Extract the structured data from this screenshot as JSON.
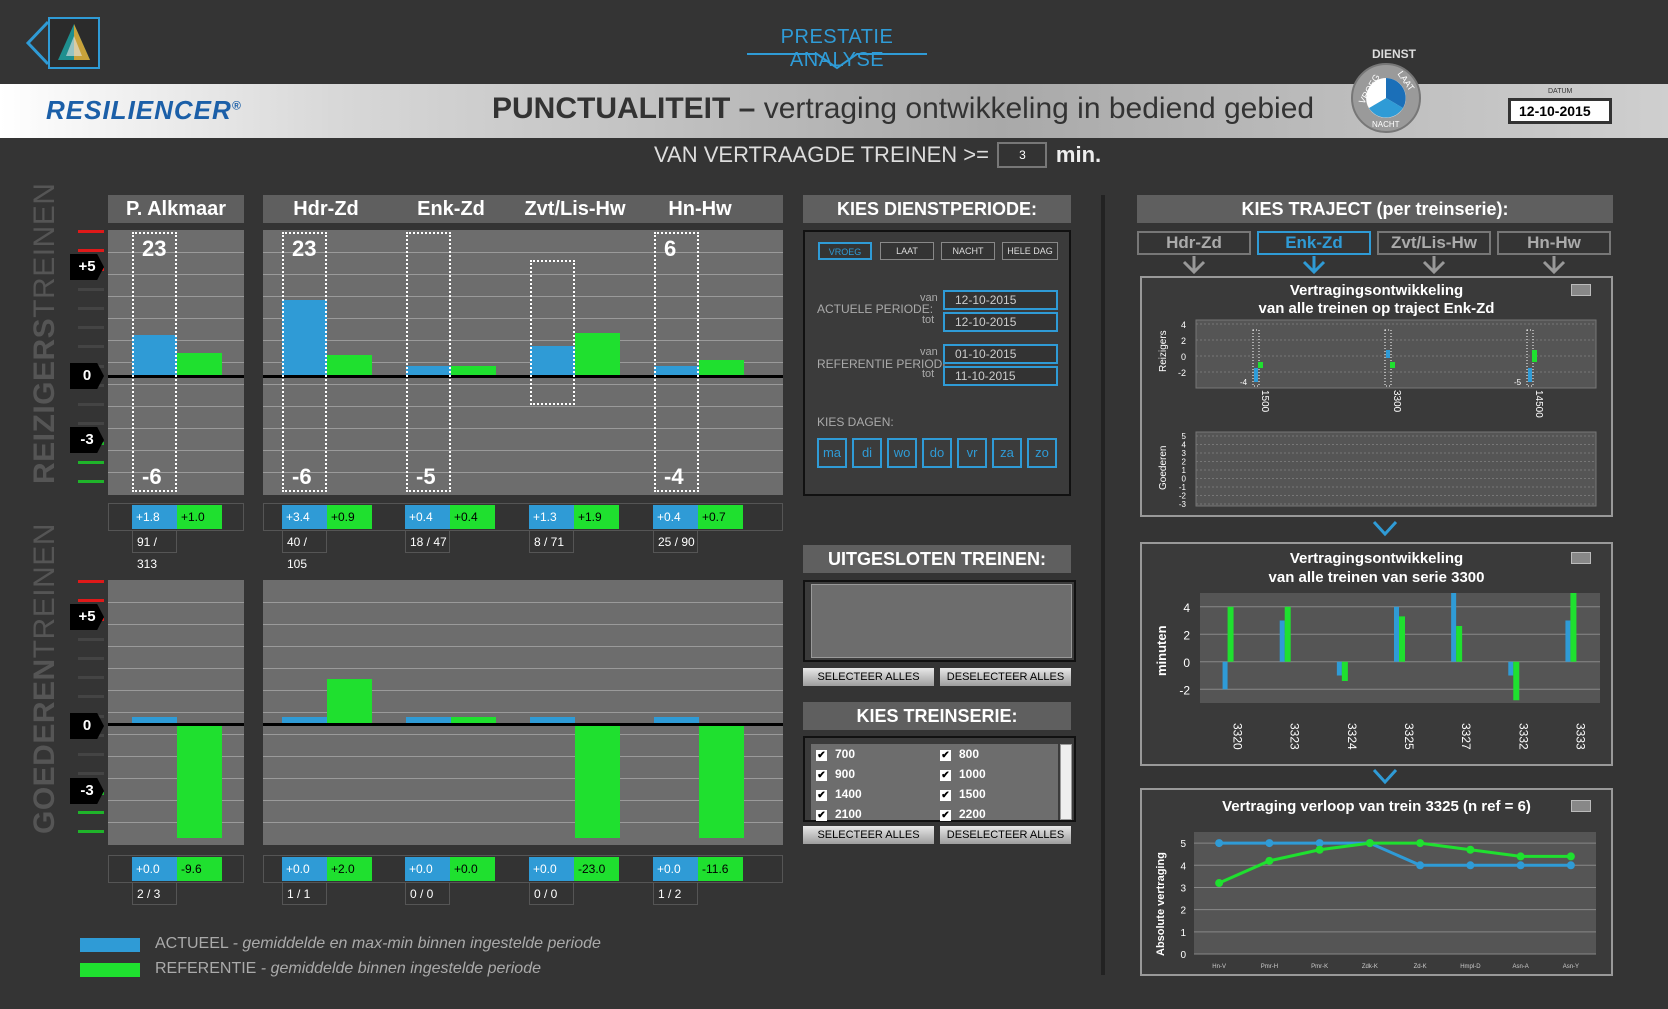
{
  "header": {
    "nav_title": "PRESTATIE ANALYSE",
    "brand": "RESILIENCER",
    "brand_mark": "®",
    "title_bold": "PUNCTUALITEIT –",
    "title_rest": "vertraging ontwikkeling in bediend gebied",
    "dienst_label": "DIENST",
    "dienst_options": [
      "VROEG",
      "LAAT",
      "NACHT"
    ],
    "datum_label": "DATUM",
    "datum_value": "12-10-2015"
  },
  "delay_filter": {
    "label": "VAN VERTRAAGDE TREINEN >=",
    "value": "3",
    "unit": "min."
  },
  "colors": {
    "actueel": "#2f9bd6",
    "referentie": "#1fe02f"
  },
  "section_labels": {
    "reiziger_a": "REIZIGERS",
    "reiziger_b": "TREINEN",
    "goederen_a": "GOEDEREN",
    "goederen_b": "TREINEN"
  },
  "y_badges": {
    "plus": "+5",
    "zero": "0",
    "minus": "-3"
  },
  "columns": [
    {
      "name": "P. Alkmaar",
      "reizigers": {
        "actueel": "+1.8",
        "referentie": "+1.0",
        "count": "91 / 313",
        "max": "23",
        "min": "-6"
      },
      "goederen": {
        "actueel": "+0.0",
        "referentie": "-9.6",
        "count": "2 / 3"
      }
    },
    {
      "name": "Hdr-Zd",
      "reizigers": {
        "actueel": "+3.4",
        "referentie": "+0.9",
        "count": "40 / 105",
        "max": "23",
        "min": "-6"
      },
      "goederen": {
        "actueel": "+0.0",
        "referentie": "+2.0",
        "count": "1 / 1"
      }
    },
    {
      "name": "Enk-Zd",
      "reizigers": {
        "actueel": "+0.4",
        "referentie": "+0.4",
        "count": "18 / 47",
        "max": "",
        "min": "-5"
      },
      "goederen": {
        "actueel": "+0.0",
        "referentie": "+0.0",
        "count": "0 / 0"
      }
    },
    {
      "name": "Zvt/Lis-Hw",
      "reizigers": {
        "actueel": "+1.3",
        "referentie": "+1.9",
        "count": "8 / 71",
        "max": "",
        "min": ""
      },
      "goederen": {
        "actueel": "+0.0",
        "referentie": "-23.0",
        "count": "0 / 0"
      }
    },
    {
      "name": "Hn-Hw",
      "reizigers": {
        "actueel": "+0.4",
        "referentie": "+0.7",
        "count": "25 / 90",
        "max": "6",
        "min": "-4"
      },
      "goederen": {
        "actueel": "+0.0",
        "referentie": "-11.6",
        "count": "1 / 2"
      }
    }
  ],
  "dienstperiode": {
    "title": "KIES DIENSTPERIODE:",
    "tabs": [
      "VROEG",
      "LAAT",
      "NACHT",
      "HELE DAG"
    ],
    "actuele_label": "ACTUELE PERIODE:",
    "referentie_label": "REFERENTIE PERIODE:",
    "van": "van",
    "tot": "tot",
    "actuele_van": "12-10-2015",
    "actuele_tot": "12-10-2015",
    "ref_van": "01-10-2015",
    "ref_tot": "11-10-2015",
    "kies_dagen": "KIES DAGEN:",
    "dagen": [
      "ma",
      "di",
      "wo",
      "do",
      "vr",
      "za",
      "zo"
    ]
  },
  "uitgesloten": {
    "title": "UITGESLOTEN TREINEN:",
    "select_all": "SELECTEER ALLES",
    "deselect_all": "DESELECTEER ALLES"
  },
  "treinserie": {
    "title": "KIES TREINSERIE:",
    "items": [
      "700",
      "800",
      "900",
      "1000",
      "1400",
      "1500",
      "2100",
      "2200"
    ],
    "select_all": "SELECTEER ALLES",
    "deselect_all": "DESELECTEER ALLES"
  },
  "traject": {
    "title": "KIES TRAJECT (per treinserie):",
    "tabs": [
      "Hdr-Zd",
      "Enk-Zd",
      "Zvt/Lis-Hw",
      "Hn-Hw"
    ],
    "selected": "Enk-Zd"
  },
  "chart1": {
    "title1": "Vertragingsontwikkeling",
    "title2": "van alle treinen  op traject Enk-Zd",
    "ylabel_top": "Reizigers",
    "ylabel_bottom": "Goederen",
    "yticks_top": [
      "4",
      "2",
      "0",
      "-2"
    ],
    "yticks_bottom": [
      "5",
      "4",
      "3",
      "2",
      "1",
      "0",
      "-1",
      "-2",
      "-3"
    ],
    "categories": [
      "1500",
      "3300",
      "14500"
    ],
    "min_labels": [
      "-4",
      "",
      "-5"
    ]
  },
  "chart_data": [
    {
      "type": "bar",
      "title": "Vertragingsontwikkeling van alle treinen van serie 3300",
      "ylabel": "minuten",
      "categories": [
        "3320",
        "3323",
        "3324",
        "3325",
        "3327",
        "3332",
        "3333"
      ],
      "ylim": [
        -3,
        5
      ],
      "yticks": [
        -2,
        0,
        2,
        4
      ],
      "series": [
        {
          "values": [
            -2.0,
            3.0,
            -1.0,
            4.0,
            5.0,
            -1.0,
            3.0
          ]
        },
        {
          "values": [
            4.0,
            4.0,
            -1.4,
            3.3,
            2.6,
            -2.8,
            5.0
          ]
        }
      ]
    },
    {
      "type": "line",
      "title": "Vertraging verloop van trein 3325 (n ref = 6)",
      "ylabel": "Absolute vertraging",
      "categories": [
        "Hn-V",
        "Pmr-H",
        "Pmr-K",
        "Zdk-K",
        "Zd-K",
        "Hmpl-D",
        "Asn-A",
        "Asn-Y"
      ],
      "ylim": [
        0,
        5.5
      ],
      "yticks": [
        0,
        1,
        2,
        3,
        4,
        5
      ],
      "series": [
        {
          "values": [
            5,
            5,
            5,
            5,
            4,
            4,
            4,
            4
          ]
        },
        {
          "values": [
            3.2,
            4.2,
            4.7,
            5.0,
            5.0,
            4.7,
            4.4,
            4.4
          ]
        }
      ]
    }
  ],
  "legend": {
    "actueel_a": "ACTUEEL",
    "actueel_b": "- gemiddelde en max-min binnen ingestelde periode",
    "referentie_a": "REFERENTIE",
    "referentie_b": "- gemiddelde binnen ingestelde periode"
  }
}
